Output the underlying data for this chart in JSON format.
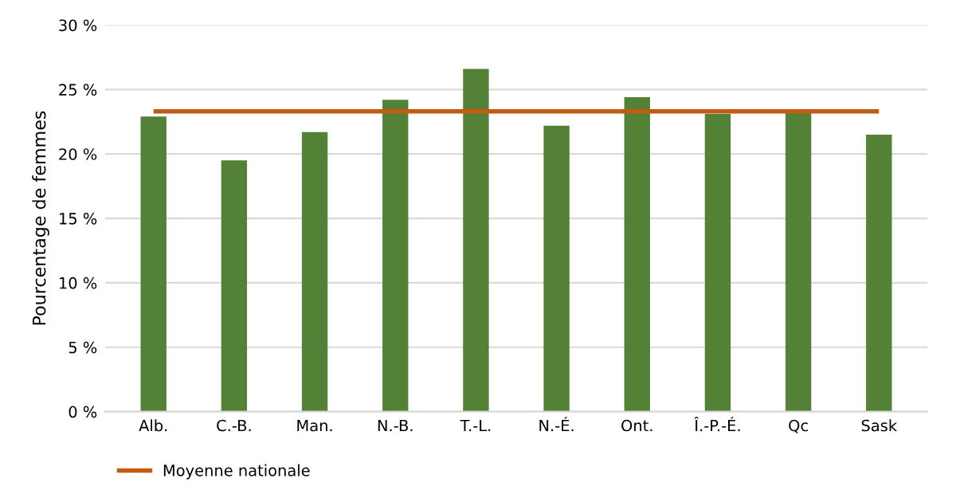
{
  "chart_data": {
    "type": "bar",
    "ylabel": "Pourcentage de femmes",
    "categories": [
      "Alb.",
      "C.-B.",
      "Man.",
      "N.-B.",
      "T.-L.",
      "N.-É.",
      "Ont.",
      "Î.-P.-É.",
      "Qc",
      "Sask"
    ],
    "values": [
      22.9,
      19.5,
      21.7,
      24.2,
      26.6,
      22.2,
      24.4,
      23.1,
      23.3,
      21.5
    ],
    "color": "#538135",
    "ylim": [
      0,
      30
    ],
    "yticks": [
      {
        "value": 0,
        "label": "0 %"
      },
      {
        "value": 5,
        "label": "5 %"
      },
      {
        "value": 10,
        "label": "10 %"
      },
      {
        "value": 15,
        "label": "15 %"
      },
      {
        "value": 20,
        "label": "20 %"
      },
      {
        "value": 25,
        "label": "25 %"
      },
      {
        "value": 30,
        "label": "30 %"
      }
    ],
    "ref_lines": [
      {
        "axis": "y",
        "value": 23.3,
        "label": "Moyenne nationale",
        "color": "#c55a11"
      }
    ],
    "grid": "y",
    "legend": "bottom"
  }
}
